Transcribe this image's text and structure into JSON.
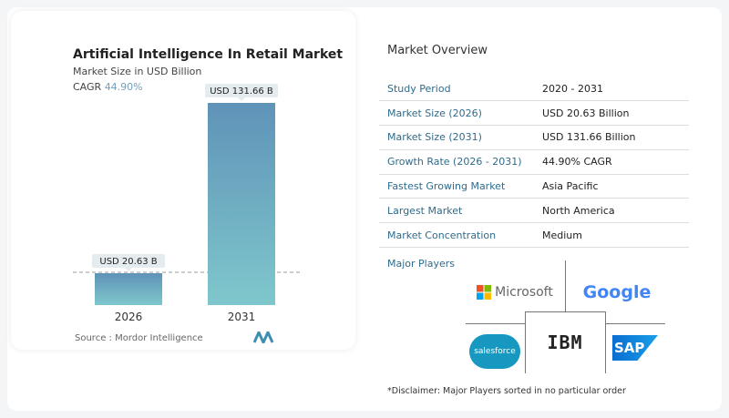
{
  "chart_data": {
    "type": "bar",
    "title": "Artificial Intelligence In Retail Market",
    "subtitle": "Market Size in USD Billion",
    "cagr_label": "CAGR",
    "cagr_value": "44.90%",
    "categories": [
      "2026",
      "2031"
    ],
    "values": [
      20.63,
      131.66
    ],
    "data_labels": [
      "USD 20.63 B",
      "USD 131.66 B"
    ],
    "colors": {
      "top": "#5f93b8",
      "bottom": "#7fc7cc"
    }
  },
  "source": "Source :  Mordor Intelligence",
  "overview": {
    "title": "Market Overview",
    "rows": [
      {
        "k": "Study Period",
        "v": "2020 - 2031"
      },
      {
        "k": "Market Size (2026)",
        "v": "USD 20.63 Billion"
      },
      {
        "k": "Market Size (2031)",
        "v": "USD 131.66 Billion"
      },
      {
        "k": "Growth Rate (2026 - 2031)",
        "v": "44.90% CAGR"
      },
      {
        "k": "Fastest Growing Market",
        "v": "Asia Pacific"
      },
      {
        "k": "Largest Market",
        "v": "North America"
      },
      {
        "k": "Market Concentration",
        "v": "Medium"
      }
    ],
    "major_players_label": "Major Players",
    "players": [
      "Microsoft",
      "Google",
      "salesforce",
      "IBM",
      "SAP"
    ],
    "disclaimer": "*Disclaimer: Major Players sorted in no particular order"
  }
}
